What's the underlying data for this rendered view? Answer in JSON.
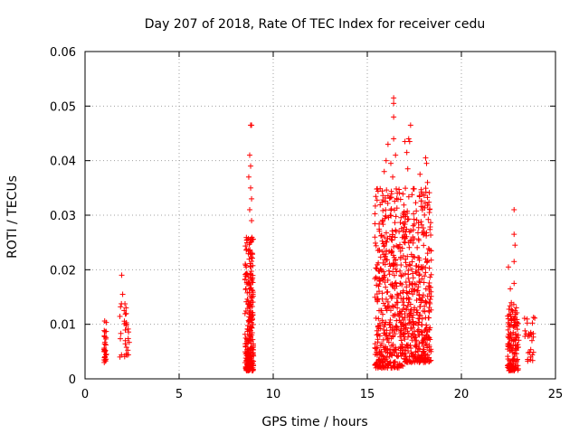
{
  "chart_data": {
    "type": "scatter",
    "title": "Day 207 of 2018, Rate Of TEC Index for receiver cedu",
    "xlabel": "GPS time / hours",
    "ylabel": "ROTI / TECUs",
    "xlim": [
      0,
      25
    ],
    "ylim": [
      0,
      0.06
    ],
    "xticks": [
      0,
      5,
      10,
      15,
      20,
      25
    ],
    "xtick_labels": [
      "0",
      "5",
      "10",
      "15",
      "20",
      "25"
    ],
    "yticks": [
      0,
      0.01,
      0.02,
      0.03,
      0.04,
      0.05,
      0.06
    ],
    "ytick_labels": [
      "0",
      "0.01",
      "0.02",
      "0.03",
      "0.04",
      "0.05",
      "0.06"
    ],
    "grid": true,
    "marker": "+",
    "marker_color": "#ff0000",
    "series": [
      {
        "name": "ROTI",
        "clusters": [
          {
            "x": [
              1.0,
              1.15
            ],
            "ymin": 0.003,
            "ymax": 0.011,
            "n": 30,
            "outliers": []
          },
          {
            "x": [
              1.85,
              2.35
            ],
            "ymin": 0.004,
            "ymax": 0.014,
            "n": 30,
            "outliers": [
              [
                1.95,
                0.019
              ],
              [
                2.0,
                0.0155
              ]
            ]
          },
          {
            "x": [
              8.5,
              8.95
            ],
            "ymin": 0.0015,
            "ymax": 0.026,
            "n": 260,
            "outliers": [
              [
                8.8,
                0.0465
              ],
              [
                8.85,
                0.0465
              ],
              [
                8.75,
                0.041
              ],
              [
                8.8,
                0.039
              ],
              [
                8.7,
                0.037
              ],
              [
                8.8,
                0.035
              ],
              [
                8.85,
                0.033
              ],
              [
                8.75,
                0.031
              ],
              [
                8.85,
                0.029
              ]
            ]
          },
          {
            "x": [
              15.4,
              16.9
            ],
            "ymin": 0.002,
            "ymax": 0.035,
            "n": 420,
            "outliers": [
              [
                16.4,
                0.0515
              ],
              [
                16.4,
                0.0505
              ],
              [
                16.4,
                0.048
              ],
              [
                16.4,
                0.044
              ],
              [
                16.1,
                0.043
              ],
              [
                16.25,
                0.0395
              ],
              [
                16.5,
                0.041
              ],
              [
                16.35,
                0.037
              ],
              [
                15.9,
                0.038
              ],
              [
                16.0,
                0.04
              ]
            ]
          },
          {
            "x": [
              16.9,
              18.4
            ],
            "ymin": 0.003,
            "ymax": 0.035,
            "n": 420,
            "outliers": [
              [
                17.3,
                0.0465
              ],
              [
                17.2,
                0.044
              ],
              [
                17.25,
                0.0435
              ],
              [
                17.0,
                0.0435
              ],
              [
                17.1,
                0.0415
              ],
              [
                18.1,
                0.0405
              ],
              [
                18.15,
                0.0395
              ],
              [
                17.15,
                0.0385
              ],
              [
                17.8,
                0.0375
              ],
              [
                18.2,
                0.036
              ]
            ]
          },
          {
            "x": [
              22.45,
              23.05
            ],
            "ymin": 0.0015,
            "ymax": 0.014,
            "n": 150,
            "outliers": [
              [
                22.8,
                0.031
              ],
              [
                22.8,
                0.0265
              ],
              [
                22.85,
                0.0245
              ],
              [
                22.8,
                0.0215
              ],
              [
                22.5,
                0.0205
              ],
              [
                22.6,
                0.0165
              ],
              [
                22.8,
                0.0175
              ]
            ]
          },
          {
            "x": [
              23.3,
              23.9
            ],
            "ymin": 0.003,
            "ymax": 0.0115,
            "n": 28,
            "outliers": []
          }
        ]
      }
    ]
  }
}
